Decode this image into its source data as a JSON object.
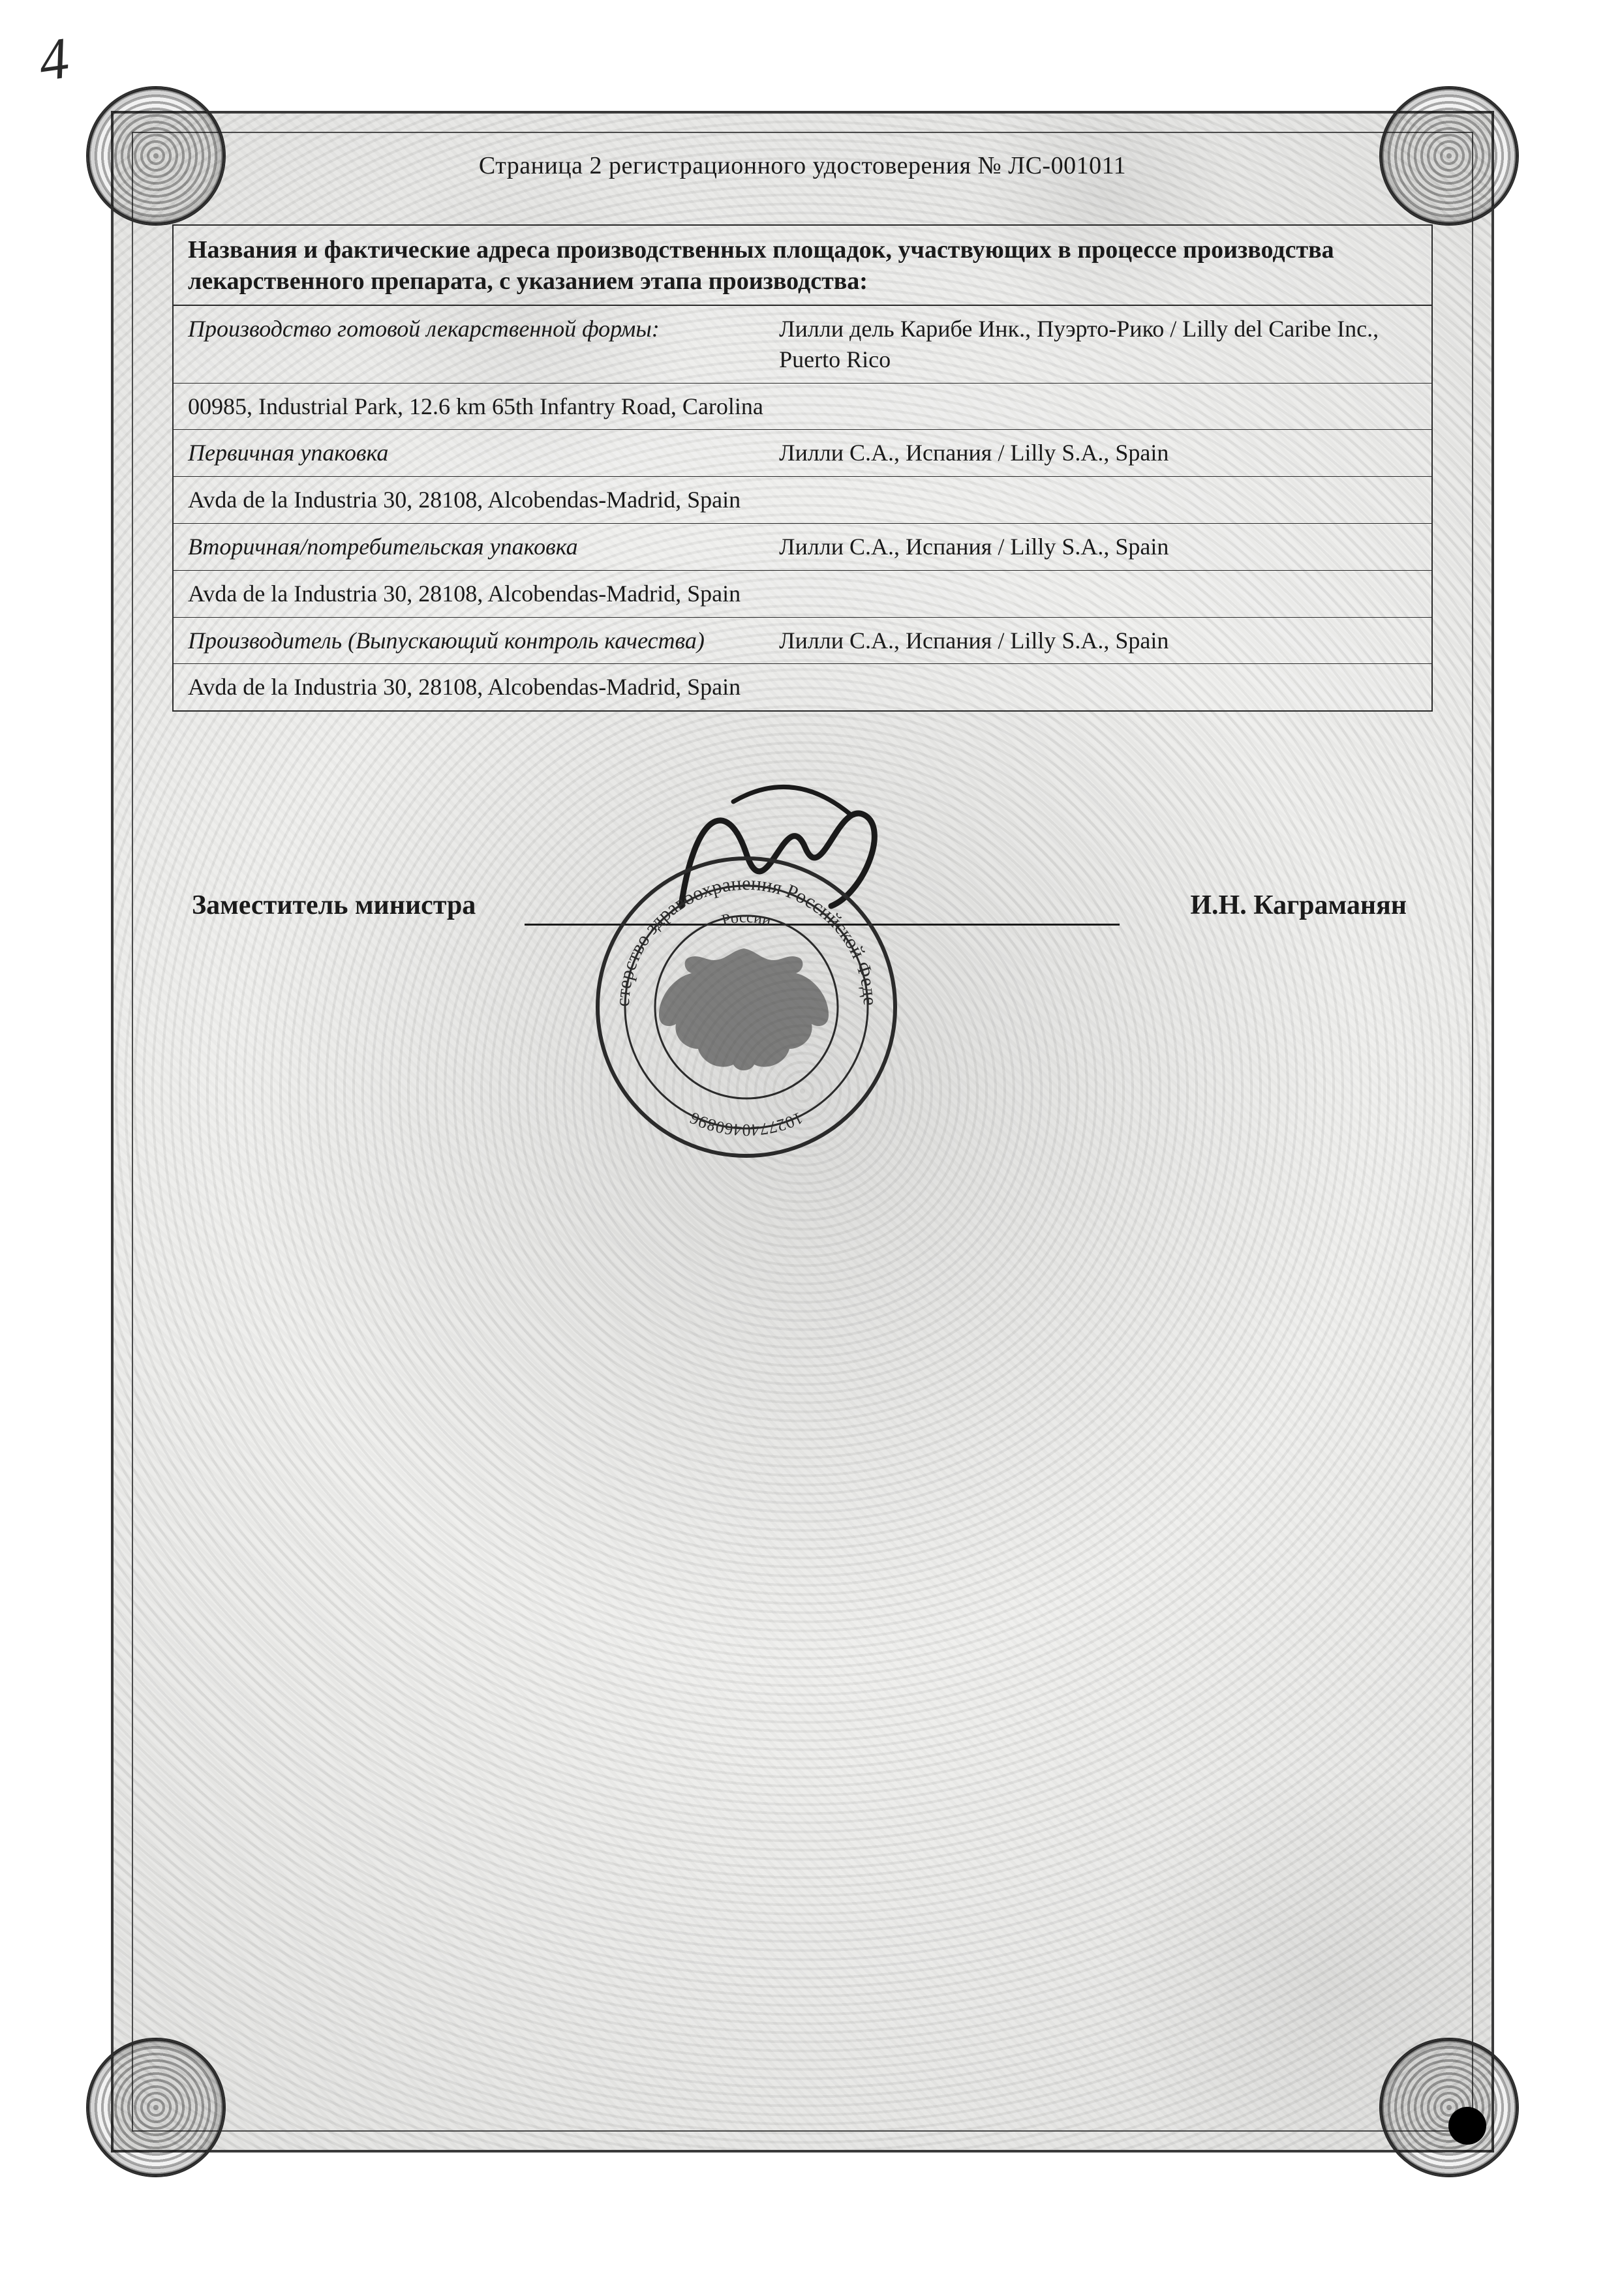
{
  "handwritten_page_number": "4",
  "header": "Страница  2 регистрационного удостоверения № ЛС-001011",
  "section_title": "Названия и фактические адреса производственных площадок, участвующих в процессе производства лекарственного препарата, с указанием этапа производства:",
  "rows": [
    {
      "label": "Производство готовой лекарственной формы:",
      "value": "Лилли дель Карибе Инк., Пуэрто-Рико / Lilly del Caribe Inc., Puerto Rico",
      "address": "00985, Industrial Park, 12.6 km 65th Infantry Road, Carolina"
    },
    {
      "label": "Первичная упаковка",
      "value": "Лилли С.А., Испания / Lilly S.A., Spain",
      "address": "Avda de la Industria 30, 28108, Alcobendas-Madrid, Spain"
    },
    {
      "label": "Вторичная/потребительская упаковка",
      "value": "Лилли С.А., Испания / Lilly S.A., Spain",
      "address": "Avda de la Industria 30, 28108, Alcobendas-Madrid, Spain"
    },
    {
      "label": "Производитель (Выпускающий контроль качества)",
      "value": "Лилли С.А., Испания / Lilly S.A., Spain",
      "address": "Avda de la Industria 30, 28108, Alcobendas-Madrid, Spain"
    }
  ],
  "signature": {
    "role": "Заместитель министра",
    "name": "И.Н. Каграманян",
    "seal_top": "Министерство здравоохранения Российской Федерации",
    "seal_inner": "России",
    "seal_numbers": "1027740460896"
  },
  "colors": {
    "text": "#1a1a1a",
    "border": "#2a2a2a",
    "paper": "#f8f8f6"
  }
}
